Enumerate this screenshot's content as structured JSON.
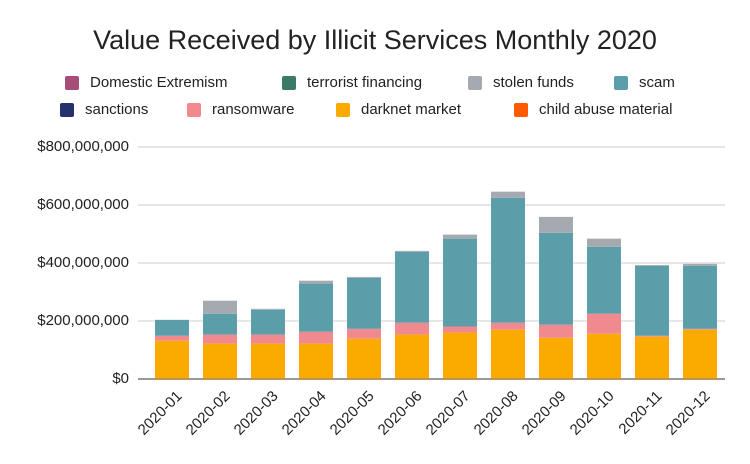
{
  "chart_data": {
    "type": "stacked_bar",
    "title": "Value Received by Illicit Services Monthly 2020",
    "categories": [
      "2020-01",
      "2020-02",
      "2020-03",
      "2020-04",
      "2020-05",
      "2020-06",
      "2020-07",
      "2020-08",
      "2020-09",
      "2020-10",
      "2020-11",
      "2020-12"
    ],
    "series": [
      {
        "name": "Domestic Extremism",
        "color": "#a64d79",
        "values": [
          0,
          0,
          0,
          0,
          0,
          0,
          0,
          0,
          0,
          0,
          0,
          0
        ]
      },
      {
        "name": "terrorist financing",
        "color": "#3b7a69",
        "values": [
          0,
          0,
          0,
          0,
          0,
          0,
          0,
          0,
          0,
          0,
          0,
          0
        ]
      },
      {
        "name": "stolen funds",
        "color": "#a5aab1",
        "values": [
          0,
          45000000,
          3000000,
          10000000,
          3000000,
          3000000,
          14000000,
          21000000,
          55000000,
          28000000,
          3000000,
          7000000
        ]
      },
      {
        "name": "scam",
        "color": "#5b9eaa",
        "values": [
          55000000,
          72000000,
          86000000,
          166000000,
          176000000,
          245000000,
          303000000,
          431000000,
          317000000,
          231000000,
          241000000,
          217000000
        ]
      },
      {
        "name": "sanctions",
        "color": "#25316b",
        "values": [
          0,
          0,
          0,
          0,
          0,
          0,
          0,
          0,
          0,
          0,
          0,
          0
        ]
      },
      {
        "name": "ransomware",
        "color": "#f08a8e",
        "values": [
          17000000,
          31000000,
          31000000,
          41000000,
          34000000,
          41000000,
          21000000,
          24000000,
          45000000,
          69000000,
          3000000,
          3000000
        ]
      },
      {
        "name": "darknet market",
        "color": "#fbab00",
        "values": [
          131000000,
          121000000,
          121000000,
          121000000,
          138000000,
          152000000,
          159000000,
          169000000,
          141000000,
          155000000,
          145000000,
          169000000
        ]
      },
      {
        "name": "child abuse material",
        "color": "#ff5a00",
        "values": [
          1000000,
          1000000,
          1000000,
          1000000,
          1000000,
          1000000,
          1000000,
          1000000,
          1000000,
          1000000,
          1000000,
          1000000
        ]
      }
    ],
    "ylim": [
      0,
      800000000
    ],
    "yticks": [
      {
        "value": 0,
        "label": "$0"
      },
      {
        "value": 200000000,
        "label": "$200,000,000"
      },
      {
        "value": 400000000,
        "label": "$400,000,000"
      },
      {
        "value": 600000000,
        "label": "$600,000,000"
      },
      {
        "value": 800000000,
        "label": "$800,000,000"
      }
    ],
    "grid": true,
    "legend": "top"
  }
}
